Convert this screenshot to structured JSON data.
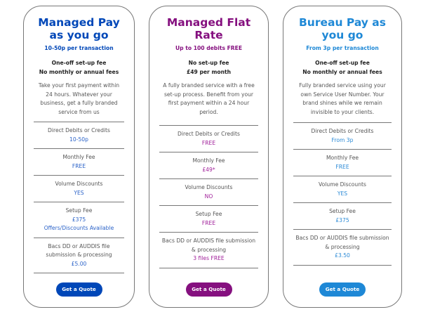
{
  "cards": [
    {
      "title": "Managed Pay as you go",
      "subtitle": "10-50p per transaction",
      "bold1": "One-off set-up fee",
      "bold2": "No monthly or annual fees",
      "description": "Take your first payment within 24 hours. Whatever your business, get a fully branded service from us",
      "rows": [
        {
          "label": "Direct Debits or Credits",
          "values": [
            "10-50p"
          ]
        },
        {
          "label": "Monthly Fee",
          "values": [
            "FREE"
          ]
        },
        {
          "label": "Volume Discounts",
          "values": [
            "YES"
          ]
        },
        {
          "label": "Setup Fee",
          "values": [
            "£375",
            "Offers/Discounts Available"
          ]
        },
        {
          "label": "Bacs DD or AUDDIS file submission & processing",
          "values": [
            "£5.00"
          ]
        }
      ],
      "button": "Get a Quote",
      "color": "#0047b8"
    },
    {
      "title": "Managed Flat Rate",
      "subtitle": "Up to 100 debits FREE",
      "bold1": "No set-up fee",
      "bold2": "£49 per month",
      "description": "A fully branded service with a free set-up process. Benefit from your first payment within a 24 hour period.",
      "rows": [
        {
          "label": "Direct Debits or Credits",
          "values": [
            "FREE"
          ]
        },
        {
          "label": "Monthly Fee",
          "values": [
            "£49*"
          ]
        },
        {
          "label": "Volume Discounts",
          "values": [
            "NO"
          ]
        },
        {
          "label": "Setup Fee",
          "values": [
            "FREE"
          ]
        },
        {
          "label": "Bacs DD or AUDDIS file submission & processing",
          "values": [
            "3 files FREE"
          ]
        }
      ],
      "button": "Get a Quote",
      "color": "#85107f"
    },
    {
      "title": "Bureau Pay as you go",
      "subtitle": "From 3p per transaction",
      "bold1": "One-off set-up fee",
      "bold2": "No monthly or annual fees",
      "description": "Fully branded service using your own Service User Number. Your brand shines while we remain invisible to your clients.",
      "rows": [
        {
          "label": "Direct Debits or Credits",
          "values": [
            "From 3p"
          ]
        },
        {
          "label": "Monthly Fee",
          "values": [
            "FREE"
          ]
        },
        {
          "label": "Volume Discounts",
          "values": [
            "YES"
          ]
        },
        {
          "label": "Setup Fee",
          "values": [
            "£375"
          ]
        },
        {
          "label": "Bacs DD or AUDDIS file submission & processing",
          "values": [
            "£3.50"
          ]
        }
      ],
      "button": "Get a Quote",
      "color": "#1e88d6"
    }
  ]
}
